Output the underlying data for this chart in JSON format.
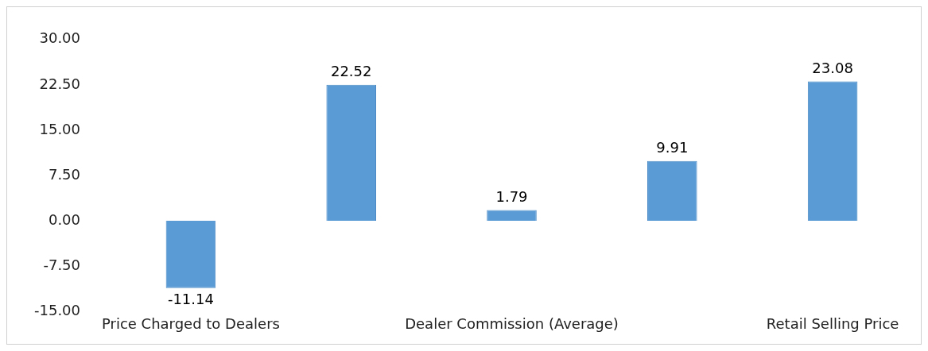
{
  "chart_data": {
    "type": "bar",
    "categories": [
      "Price Charged to Dealers",
      null,
      "Dealer Commission (Average)",
      null,
      "Retail Selling Price"
    ],
    "values": [
      -11.14,
      22.52,
      1.79,
      9.91,
      23.08
    ],
    "color": "#5b9bd5",
    "ylim": [
      -15,
      30
    ],
    "yticks": [
      {
        "value": -15,
        "label": "-15.00"
      },
      {
        "value": -7.5,
        "label": "-7.50"
      },
      {
        "value": 0,
        "label": "0.00"
      },
      {
        "value": 7.5,
        "label": "7.50"
      },
      {
        "value": 15,
        "label": "15.00"
      },
      {
        "value": 22.5,
        "label": "22.50"
      },
      {
        "value": 30,
        "label": "30.00"
      }
    ],
    "data_labels": true,
    "grid": false,
    "legend": false
  }
}
